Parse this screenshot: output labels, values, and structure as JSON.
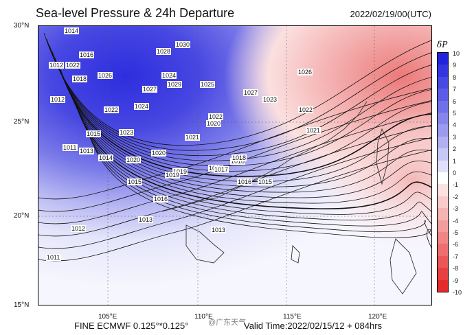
{
  "header": {
    "title": "Sea-level Pressure & 24h Departure",
    "datetime": "2022/02/19/00(UTC)"
  },
  "footer": {
    "model": "FINE ECMWF 0.125°*0.125°",
    "valid_time": "Valid Time:2022/02/15/12 + 084hrs"
  },
  "latitudes": [
    "30°N",
    "25°N",
    "20°N",
    "15°N"
  ],
  "longitudes": [
    "105°E",
    "110°E",
    "115°E",
    "120°E"
  ],
  "colorbar": {
    "title": "δP",
    "ticks": [
      "10",
      "9",
      "8",
      "7",
      "6",
      "5",
      "4",
      "3",
      "2",
      "1",
      "0",
      "-1",
      "-2",
      "-3",
      "-4",
      "-5",
      "-6",
      "-7",
      "-8",
      "-9",
      "-10"
    ],
    "colors": [
      "#2222dd",
      "#3535e0",
      "#4848e3",
      "#5c5ce6",
      "#7070e8",
      "#8585eb",
      "#9a9aee",
      "#b0b0f2",
      "#c8c8f6",
      "#e0e0fa",
      "#ffffff",
      "#fbe2e2",
      "#f8caca",
      "#f5b3b3",
      "#f29c9c",
      "#ef8585",
      "#ec6e6e",
      "#e95757",
      "#e64040",
      "#e42a2a"
    ]
  },
  "isobar_labels": [
    "1014",
    "1016",
    "1022",
    "1012",
    "1018",
    "1026",
    "1028",
    "1030",
    "1027",
    "1029",
    "1025",
    "1027",
    "1023",
    "1026",
    "1022",
    "1021",
    "1024",
    "1022",
    "1020",
    "1019",
    "1017",
    "1018",
    "1015",
    "1013",
    "1012",
    "1011",
    "1013",
    "1016",
    "1014",
    "1015",
    "1011",
    "1012",
    "1020",
    "1023",
    "1015",
    "1019",
    "1017",
    "1021",
    "1022",
    "1024",
    "1016",
    "1018",
    "1020",
    "1013"
  ],
  "watermark": "@广东天气"
}
